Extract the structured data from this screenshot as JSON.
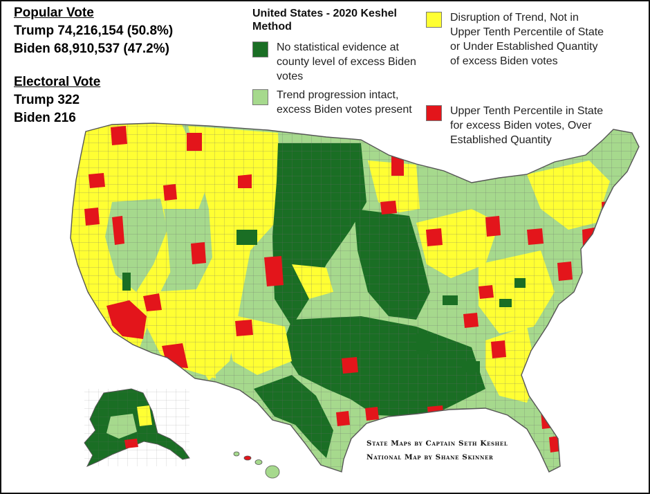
{
  "popular_vote": {
    "heading": "Popular Vote",
    "trump": "Trump 74,216,154 (50.8%)",
    "biden": "Biden 68,910,537 (47.2%)"
  },
  "electoral_vote": {
    "heading": "Electoral Vote",
    "trump": "Trump 322",
    "biden": "Biden 216"
  },
  "legend": {
    "title": "United States - 2020 Keshel Method",
    "items": [
      {
        "label": "No statistical evidence at county level of excess Biden votes",
        "color": "#1a6e24"
      },
      {
        "label": "Trend progression intact, excess Biden votes present",
        "color": "#a6d98d"
      },
      {
        "label": "Disruption of Trend, Not in Upper Tenth Percentile of State or Under Established Quantity of excess Biden votes",
        "color": "#ffff33"
      },
      {
        "label": "Upper Tenth Percentile in State for excess Biden votes, Over Established Quantity",
        "color": "#e3151b"
      }
    ]
  },
  "credits": {
    "line1": "State Maps by Captain Seth Keshel",
    "line2": "National Map by Shane Skinner"
  },
  "colors": {
    "dark_green": "#1a6e24",
    "light_green": "#a6d98d",
    "yellow": "#ffff33",
    "red": "#e3151b",
    "border": "#555555"
  }
}
